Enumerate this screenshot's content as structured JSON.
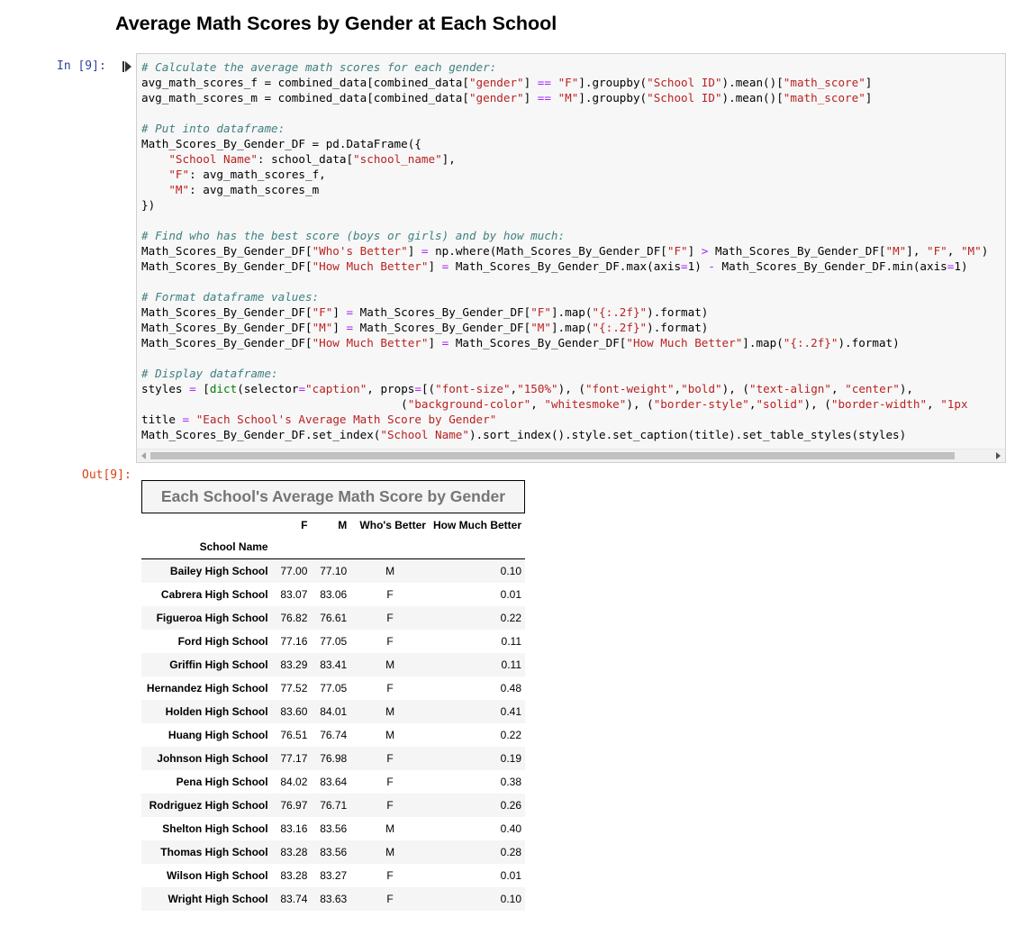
{
  "heading": "Average Math Scores by Gender at Each School",
  "cell_in": {
    "prompt": "In [9]:",
    "code_lines": [
      [
        [
          "cm",
          "# Calculate the average math scores for each gender:"
        ]
      ],
      [
        [
          "",
          "avg_math_scores_f = combined_data[combined_data["
        ],
        [
          "st",
          "\"gender\""
        ],
        [
          "",
          "] "
        ],
        [
          "op",
          "=="
        ],
        [
          "",
          " "
        ],
        [
          "st",
          "\"F\""
        ],
        [
          "",
          "].groupby("
        ],
        [
          "st",
          "\"School ID\""
        ],
        [
          "",
          ").mean()["
        ],
        [
          "st",
          "\"math_score\""
        ],
        [
          "",
          "]"
        ]
      ],
      [
        [
          "",
          "avg_math_scores_m = combined_data[combined_data["
        ],
        [
          "st",
          "\"gender\""
        ],
        [
          "",
          "] "
        ],
        [
          "op",
          "=="
        ],
        [
          "",
          " "
        ],
        [
          "st",
          "\"M\""
        ],
        [
          "",
          "].groupby("
        ],
        [
          "st",
          "\"School ID\""
        ],
        [
          "",
          ").mean()["
        ],
        [
          "st",
          "\"math_score\""
        ],
        [
          "",
          "]"
        ]
      ],
      [],
      [
        [
          "cm",
          "# Put into dataframe:"
        ]
      ],
      [
        [
          "",
          "Math_Scores_By_Gender_DF = pd.DataFrame({"
        ]
      ],
      [
        [
          "",
          "    "
        ],
        [
          "st",
          "\"School Name\""
        ],
        [
          "",
          ": school_data["
        ],
        [
          "st",
          "\"school_name\""
        ],
        [
          "",
          "],"
        ]
      ],
      [
        [
          "",
          "    "
        ],
        [
          "st",
          "\"F\""
        ],
        [
          "",
          ": avg_math_scores_f,"
        ]
      ],
      [
        [
          "",
          "    "
        ],
        [
          "st",
          "\"M\""
        ],
        [
          "",
          ": avg_math_scores_m"
        ]
      ],
      [
        [
          "",
          "})"
        ]
      ],
      [],
      [
        [
          "cm",
          "# Find who has the best score (boys or girls) and by how much:"
        ]
      ],
      [
        [
          "",
          "Math_Scores_By_Gender_DF["
        ],
        [
          "st",
          "\"Who's Better\""
        ],
        [
          "",
          "] "
        ],
        [
          "op",
          "="
        ],
        [
          "",
          " np.where(Math_Scores_By_Gender_DF["
        ],
        [
          "st",
          "\"F\""
        ],
        [
          "",
          "] "
        ],
        [
          "op",
          ">"
        ],
        [
          "",
          " Math_Scores_By_Gender_DF["
        ],
        [
          "st",
          "\"M\""
        ],
        [
          "",
          "], "
        ],
        [
          "st",
          "\"F\""
        ],
        [
          "",
          ", "
        ],
        [
          "st",
          "\"M\""
        ],
        [
          "",
          ")"
        ]
      ],
      [
        [
          "",
          "Math_Scores_By_Gender_DF["
        ],
        [
          "st",
          "\"How Much Better\""
        ],
        [
          "",
          "] "
        ],
        [
          "op",
          "="
        ],
        [
          "",
          " Math_Scores_By_Gender_DF.max(axis"
        ],
        [
          "op",
          "="
        ],
        [
          "",
          "1) "
        ],
        [
          "op",
          "-"
        ],
        [
          "",
          " Math_Scores_By_Gender_DF.min(axis"
        ],
        [
          "op",
          "="
        ],
        [
          "",
          "1)"
        ]
      ],
      [],
      [
        [
          "cm",
          "# Format dataframe values:"
        ]
      ],
      [
        [
          "",
          "Math_Scores_By_Gender_DF["
        ],
        [
          "st",
          "\"F\""
        ],
        [
          "",
          "] "
        ],
        [
          "op",
          "="
        ],
        [
          "",
          " Math_Scores_By_Gender_DF["
        ],
        [
          "st",
          "\"F\""
        ],
        [
          "",
          "].map("
        ],
        [
          "st",
          "\"{:.2f}\""
        ],
        [
          "",
          ").format)"
        ]
      ],
      [
        [
          "",
          "Math_Scores_By_Gender_DF["
        ],
        [
          "st",
          "\"M\""
        ],
        [
          "",
          "] "
        ],
        [
          "op",
          "="
        ],
        [
          "",
          " Math_Scores_By_Gender_DF["
        ],
        [
          "st",
          "\"M\""
        ],
        [
          "",
          "].map("
        ],
        [
          "st",
          "\"{:.2f}\""
        ],
        [
          "",
          ").format)"
        ]
      ],
      [
        [
          "",
          "Math_Scores_By_Gender_DF["
        ],
        [
          "st",
          "\"How Much Better\""
        ],
        [
          "",
          "] "
        ],
        [
          "op",
          "="
        ],
        [
          "",
          " Math_Scores_By_Gender_DF["
        ],
        [
          "st",
          "\"How Much Better\""
        ],
        [
          "",
          "].map("
        ],
        [
          "st",
          "\"{:.2f}\""
        ],
        [
          "",
          ").format)"
        ]
      ],
      [],
      [
        [
          "cm",
          "# Display dataframe:"
        ]
      ],
      [
        [
          "",
          "styles "
        ],
        [
          "op",
          "="
        ],
        [
          "",
          " ["
        ],
        [
          "nb",
          "dict"
        ],
        [
          "",
          "(selector"
        ],
        [
          "op",
          "="
        ],
        [
          "st",
          "\"caption\""
        ],
        [
          "",
          ", props"
        ],
        [
          "op",
          "="
        ],
        [
          "",
          "[("
        ],
        [
          "st",
          "\"font-size\""
        ],
        [
          "",
          ","
        ],
        [
          "st",
          "\"150%\""
        ],
        [
          "",
          "), ("
        ],
        [
          "st",
          "\"font-weight\""
        ],
        [
          "",
          ","
        ],
        [
          "st",
          "\"bold\""
        ],
        [
          "",
          "), ("
        ],
        [
          "st",
          "\"text-align\""
        ],
        [
          "",
          ", "
        ],
        [
          "st",
          "\"center\""
        ],
        [
          "",
          "),"
        ]
      ],
      [
        [
          "",
          "                                      ("
        ],
        [
          "st",
          "\"background-color\""
        ],
        [
          "",
          ", "
        ],
        [
          "st",
          "\"whitesmoke\""
        ],
        [
          "",
          "), ("
        ],
        [
          "st",
          "\"border-style\""
        ],
        [
          "",
          ","
        ],
        [
          "st",
          "\"solid\""
        ],
        [
          "",
          "), ("
        ],
        [
          "st",
          "\"border-width\""
        ],
        [
          "",
          ", "
        ],
        [
          "st",
          "\"1px"
        ]
      ],
      [
        [
          "",
          "title "
        ],
        [
          "op",
          "="
        ],
        [
          "",
          " "
        ],
        [
          "st",
          "\"Each School's Average Math Score by Gender\""
        ]
      ],
      [
        [
          "",
          "Math_Scores_By_Gender_DF.set_index("
        ],
        [
          "st",
          "\"School Name\""
        ],
        [
          "",
          ").sort_index().style.set_caption(title).set_table_styles(styles)"
        ]
      ]
    ]
  },
  "cell_out": {
    "prompt": "Out[9]:",
    "caption": "Each School's Average Math Score by Gender",
    "columns": [
      "F",
      "M",
      "Who's Better",
      "How Much Better"
    ],
    "index_name": "School Name",
    "rows": [
      {
        "school": "Bailey High School",
        "f": "77.00",
        "m": "77.10",
        "better": "M",
        "diff": "0.10"
      },
      {
        "school": "Cabrera High School",
        "f": "83.07",
        "m": "83.06",
        "better": "F",
        "diff": "0.01"
      },
      {
        "school": "Figueroa High School",
        "f": "76.82",
        "m": "76.61",
        "better": "F",
        "diff": "0.22"
      },
      {
        "school": "Ford High School",
        "f": "77.16",
        "m": "77.05",
        "better": "F",
        "diff": "0.11"
      },
      {
        "school": "Griffin High School",
        "f": "83.29",
        "m": "83.41",
        "better": "M",
        "diff": "0.11"
      },
      {
        "school": "Hernandez High School",
        "f": "77.52",
        "m": "77.05",
        "better": "F",
        "diff": "0.48"
      },
      {
        "school": "Holden High School",
        "f": "83.60",
        "m": "84.01",
        "better": "M",
        "diff": "0.41"
      },
      {
        "school": "Huang High School",
        "f": "76.51",
        "m": "76.74",
        "better": "M",
        "diff": "0.22"
      },
      {
        "school": "Johnson High School",
        "f": "77.17",
        "m": "76.98",
        "better": "F",
        "diff": "0.19"
      },
      {
        "school": "Pena High School",
        "f": "84.02",
        "m": "83.64",
        "better": "F",
        "diff": "0.38"
      },
      {
        "school": "Rodriguez High School",
        "f": "76.97",
        "m": "76.71",
        "better": "F",
        "diff": "0.26"
      },
      {
        "school": "Shelton High School",
        "f": "83.16",
        "m": "83.56",
        "better": "M",
        "diff": "0.40"
      },
      {
        "school": "Thomas High School",
        "f": "83.28",
        "m": "83.56",
        "better": "M",
        "diff": "0.28"
      },
      {
        "school": "Wilson High School",
        "f": "83.28",
        "m": "83.27",
        "better": "F",
        "diff": "0.01"
      },
      {
        "school": "Wright High School",
        "f": "83.74",
        "m": "83.63",
        "better": "F",
        "diff": "0.10"
      }
    ]
  },
  "icons": {
    "run_indicator": "step-run-icon",
    "scroll_left": "chevron-left-icon",
    "scroll_right": "chevron-right-icon"
  }
}
